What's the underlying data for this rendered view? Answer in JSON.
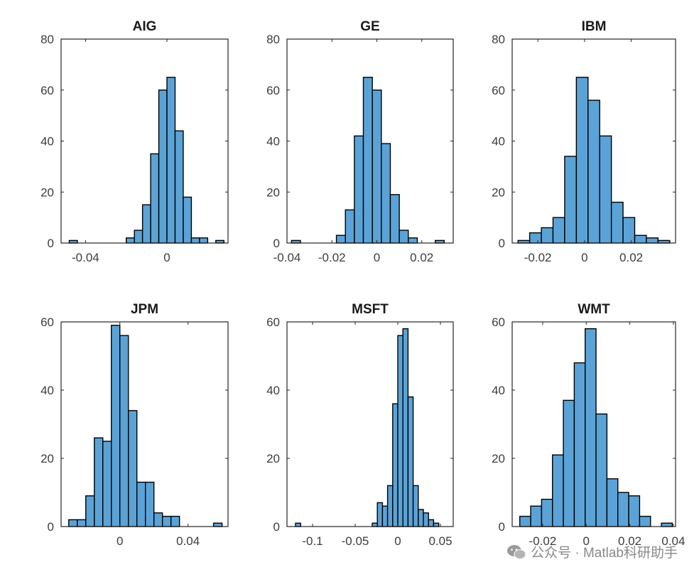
{
  "chart_data": [
    {
      "type": "bar",
      "title": "AIG",
      "xlabel": "",
      "ylabel": "",
      "xlim": [
        -0.052,
        0.03
      ],
      "ylim": [
        0,
        80
      ],
      "bin_edges": [
        -0.048,
        -0.044,
        -0.04,
        -0.036,
        -0.032,
        -0.028,
        -0.024,
        -0.02,
        -0.016,
        -0.012,
        -0.008,
        -0.004,
        0,
        0.004,
        0.008,
        0.012,
        0.016,
        0.02,
        0.024,
        0.028
      ],
      "values": [
        1,
        0,
        0,
        0,
        0,
        0,
        0,
        2,
        5,
        15,
        35,
        60,
        65,
        44,
        18,
        2,
        2,
        0,
        1
      ],
      "xticks": [
        -0.04,
        0
      ],
      "xtick_labels": [
        "-0.04",
        "0"
      ],
      "yticks": [
        0,
        20,
        40,
        60,
        80
      ],
      "ytick_labels": [
        "0",
        "20",
        "40",
        "60",
        "80"
      ]
    },
    {
      "type": "bar",
      "title": "GE",
      "xlabel": "",
      "ylabel": "",
      "xlim": [
        -0.04,
        0.034
      ],
      "ylim": [
        0,
        80
      ],
      "bin_edges": [
        -0.038,
        -0.034,
        -0.03,
        -0.026,
        -0.022,
        -0.018,
        -0.014,
        -0.01,
        -0.006,
        -0.002,
        0.002,
        0.006,
        0.01,
        0.014,
        0.018,
        0.022,
        0.026,
        0.03,
        0.034
      ],
      "values": [
        1,
        0,
        0,
        0,
        0,
        3,
        13,
        42,
        65,
        60,
        39,
        19,
        5,
        2,
        0,
        0,
        1,
        0
      ],
      "xticks": [
        -0.04,
        -0.02,
        0,
        0.02
      ],
      "xtick_labels": [
        "-0.04",
        "-0.02",
        "0",
        "0.02"
      ],
      "yticks": [
        0,
        20,
        40,
        60,
        80
      ],
      "ytick_labels": [
        "0",
        "20",
        "40",
        "60",
        "80"
      ]
    },
    {
      "type": "bar",
      "title": "IBM",
      "xlabel": "",
      "ylabel": "",
      "xlim": [
        -0.031,
        0.039
      ],
      "ylim": [
        0,
        80
      ],
      "bin_edges": [
        -0.0285,
        -0.0235,
        -0.0185,
        -0.0135,
        -0.0085,
        -0.0035,
        0.0015,
        0.0065,
        0.0115,
        0.0165,
        0.0215,
        0.0265,
        0.0315,
        0.0365
      ],
      "values": [
        1,
        4,
        6,
        10,
        34,
        65,
        56,
        42,
        16,
        10,
        3,
        2,
        1
      ],
      "xticks": [
        -0.02,
        0,
        0.02
      ],
      "xtick_labels": [
        "-0.02",
        "0",
        "0.02"
      ],
      "yticks": [
        0,
        20,
        40,
        60,
        80
      ],
      "ytick_labels": [
        "0",
        "20",
        "40",
        "60",
        "80"
      ]
    },
    {
      "type": "bar",
      "title": "JPM",
      "xlabel": "",
      "ylabel": "",
      "xlim": [
        -0.0345,
        0.0635
      ],
      "ylim": [
        0,
        60
      ],
      "bin_edges": [
        -0.03,
        -0.025,
        -0.02,
        -0.015,
        -0.01,
        -0.005,
        0,
        0.005,
        0.01,
        0.015,
        0.02,
        0.025,
        0.03,
        0.035,
        0.04,
        0.045,
        0.05,
        0.055,
        0.06
      ],
      "values": [
        2,
        2,
        9,
        26,
        25,
        59,
        56,
        34,
        13,
        13,
        4,
        3,
        3,
        0,
        0,
        0,
        0,
        1
      ],
      "xticks": [
        0,
        0.04
      ],
      "xtick_labels": [
        "0",
        "0.04"
      ],
      "yticks": [
        0,
        20,
        40,
        60
      ],
      "ytick_labels": [
        "0",
        "20",
        "40",
        "60"
      ]
    },
    {
      "type": "bar",
      "title": "MSFT",
      "xlabel": "",
      "ylabel": "",
      "xlim": [
        -0.13,
        0.065
      ],
      "ylim": [
        0,
        60
      ],
      "bin_edges": [
        -0.12,
        -0.114,
        -0.108,
        -0.102,
        -0.096,
        -0.09,
        -0.084,
        -0.078,
        -0.072,
        -0.066,
        -0.06,
        -0.054,
        -0.048,
        -0.042,
        -0.036,
        -0.03,
        -0.024,
        -0.018,
        -0.012,
        -0.006,
        0,
        0.006,
        0.012,
        0.018,
        0.024,
        0.03,
        0.036,
        0.042,
        0.048,
        0.054
      ],
      "values": [
        1,
        0,
        0,
        0,
        0,
        0,
        0,
        0,
        0,
        0,
        0,
        0,
        0,
        0,
        0,
        1,
        7,
        6,
        12,
        36,
        56,
        58,
        38,
        12,
        5,
        4,
        2,
        1,
        0
      ],
      "xticks": [
        -0.1,
        -0.05,
        0,
        0.05
      ],
      "xtick_labels": [
        "-0.1",
        "-0.05",
        "0",
        "0.05"
      ],
      "yticks": [
        0,
        20,
        40,
        60
      ],
      "ytick_labels": [
        "0",
        "20",
        "40",
        "60"
      ]
    },
    {
      "type": "bar",
      "title": "WMT",
      "xlabel": "",
      "ylabel": "",
      "xlim": [
        -0.034,
        0.041
      ],
      "ylim": [
        0,
        60
      ],
      "bin_edges": [
        -0.0305,
        -0.0255,
        -0.0205,
        -0.0155,
        -0.0105,
        -0.0055,
        -0.0005,
        0.0045,
        0.0095,
        0.0145,
        0.0195,
        0.0245,
        0.0295,
        0.0345,
        0.0395
      ],
      "values": [
        3,
        6,
        8,
        21,
        37,
        48,
        58,
        33,
        14,
        10,
        9,
        3,
        0,
        1
      ],
      "xticks": [
        -0.02,
        0,
        0.02,
        0.04
      ],
      "xtick_labels": [
        "-0.02",
        "0",
        "0.02",
        "0.04"
      ],
      "yticks": [
        0,
        20,
        40,
        60
      ],
      "ytick_labels": [
        "0",
        "20",
        "40",
        "60"
      ]
    }
  ],
  "colors": {
    "bar_fill": "#5ba3d7",
    "bar_edge": "#000000",
    "axes": "#262626"
  },
  "watermark": {
    "text": "公众号 · Matlab科研助手",
    "icon": "wechat-icon"
  }
}
